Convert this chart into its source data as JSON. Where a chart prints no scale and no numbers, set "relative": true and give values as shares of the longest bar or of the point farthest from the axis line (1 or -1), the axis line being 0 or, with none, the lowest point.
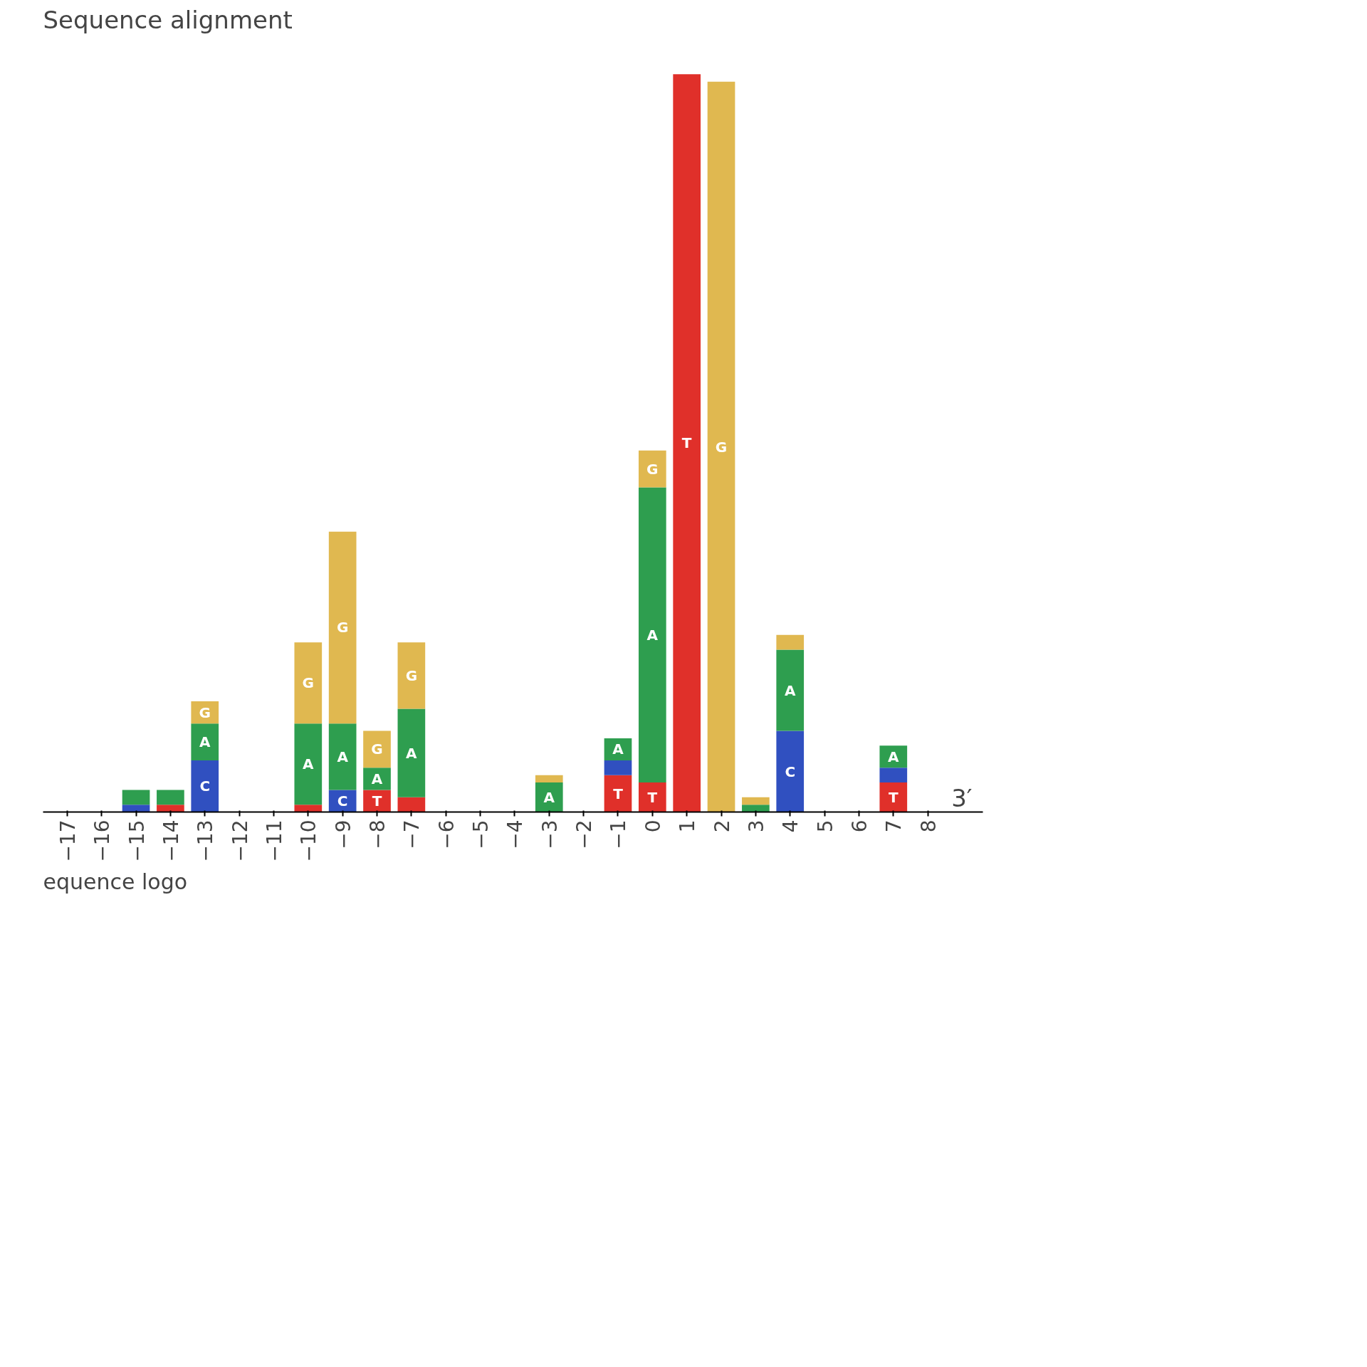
{
  "chart_data": {
    "type": "bar",
    "stacked": true,
    "relative": true,
    "title": "Sequence alignment",
    "xlabel": "3′",
    "categories": [
      "−17",
      "−16",
      "−15",
      "−14",
      "−13",
      "−12",
      "−11",
      "−10",
      "−9",
      "−8",
      "−7",
      "−6",
      "−5",
      "−4",
      "−3",
      "−2",
      "−1",
      "0",
      "1",
      "2",
      "3",
      "4",
      "5",
      "6",
      "7",
      "8"
    ],
    "series": [
      {
        "name": "T",
        "color": "#e0302a",
        "values": [
          0,
          0,
          0,
          0.01,
          0,
          0,
          0,
          0.01,
          0,
          0.03,
          0.02,
          0,
          0,
          0,
          0,
          0,
          0.05,
          0.04,
          1.0,
          0,
          0,
          0,
          0,
          0,
          0.04,
          0
        ]
      },
      {
        "name": "C",
        "color": "#3050c0",
        "values": [
          0,
          0,
          0.01,
          0,
          0.07,
          0,
          0,
          0,
          0.03,
          0,
          0,
          0,
          0,
          0,
          0,
          0,
          0.02,
          0,
          0,
          0,
          0,
          0.11,
          0,
          0,
          0.02,
          0
        ]
      },
      {
        "name": "A",
        "color": "#2e9e4f",
        "values": [
          0,
          0,
          0.02,
          0.02,
          0.05,
          0,
          0,
          0.11,
          0.09,
          0.03,
          0.12,
          0,
          0,
          0,
          0.04,
          0,
          0.03,
          0.4,
          0,
          0,
          0.01,
          0.11,
          0,
          0,
          0.03,
          0
        ]
      },
      {
        "name": "G",
        "color": "#e0b850",
        "values": [
          0,
          0,
          0,
          0,
          0.03,
          0,
          0,
          0.11,
          0.26,
          0.05,
          0.09,
          0,
          0,
          0,
          0.01,
          0,
          0,
          0.05,
          0,
          0.99,
          0.01,
          0.02,
          0,
          0,
          0,
          0
        ]
      }
    ],
    "annotations": [
      "equence logo"
    ]
  }
}
